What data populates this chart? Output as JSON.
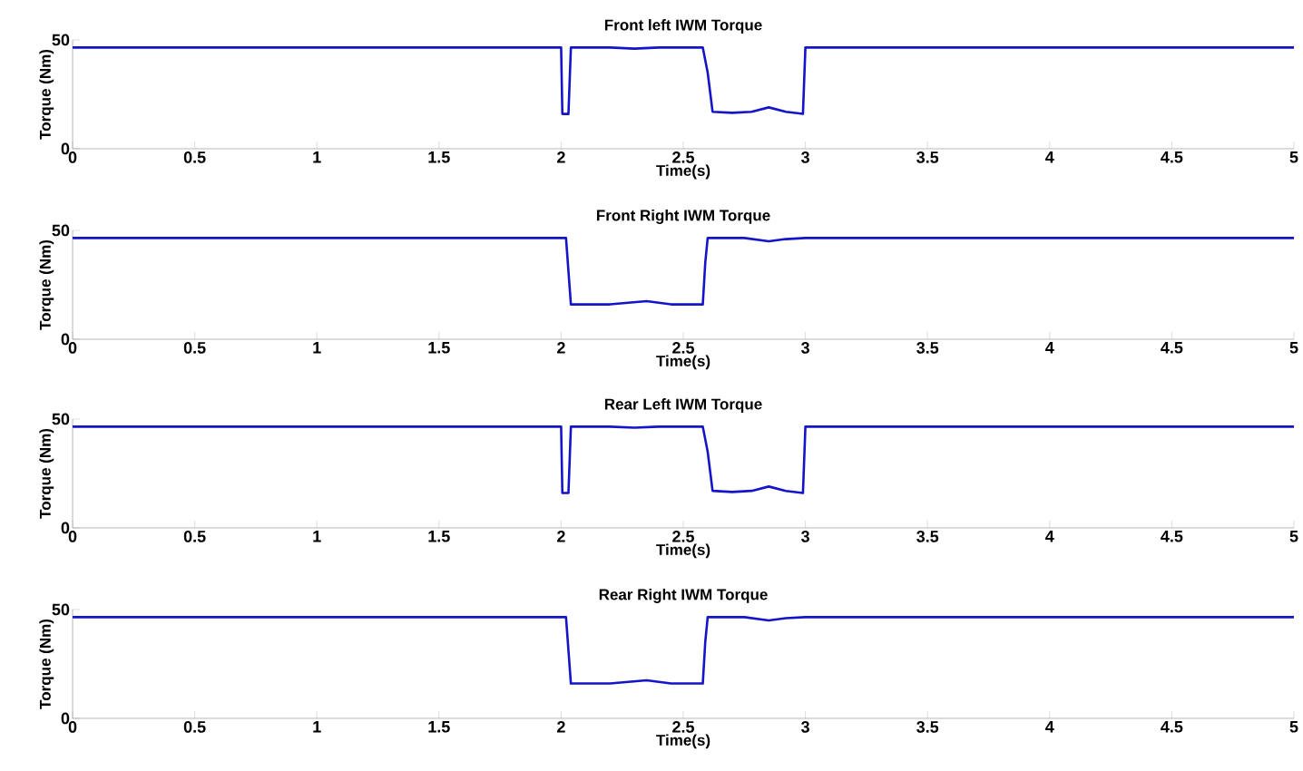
{
  "chart_data": [
    {
      "type": "line",
      "title": "Front left IWM Torque",
      "xlabel": "Time(s)",
      "ylabel": "Torque (Nm)",
      "series": [
        {
          "color": "#1414c8",
          "x": [
            0,
            1.0,
            2.0,
            2.005,
            2.03,
            2.04,
            2.2,
            2.3,
            2.4,
            2.58,
            2.6,
            2.62,
            2.7,
            2.78,
            2.85,
            2.92,
            2.99,
            3.0,
            4.0,
            5.0
          ],
          "values": [
            46.5,
            46.5,
            46.5,
            16,
            16,
            46.5,
            46.5,
            46,
            46.5,
            46.5,
            35,
            17,
            16.5,
            17,
            19,
            17,
            16,
            46.5,
            46.5,
            46.5
          ]
        }
      ],
      "xlim": [
        0,
        5
      ],
      "ylim": [
        0,
        50
      ],
      "xticks": [
        0,
        0.5,
        1,
        1.5,
        2,
        2.5,
        3,
        3.5,
        4,
        4.5,
        5
      ],
      "yticks": [
        0,
        50
      ]
    },
    {
      "type": "line",
      "title": "Front Right IWM Torque",
      "xlabel": "Time(s)",
      "ylabel": "Torque (Nm)",
      "series": [
        {
          "color": "#1414c8",
          "x": [
            0,
            1.0,
            2.0,
            2.02,
            2.04,
            2.2,
            2.35,
            2.45,
            2.58,
            2.59,
            2.6,
            2.75,
            2.85,
            2.92,
            3.0,
            4.0,
            5.0
          ],
          "values": [
            46.5,
            46.5,
            46.5,
            46.5,
            16,
            16,
            17.5,
            16,
            16,
            35,
            46.5,
            46.5,
            45,
            46,
            46.5,
            46.5,
            46.5
          ]
        }
      ],
      "xlim": [
        0,
        5
      ],
      "ylim": [
        0,
        50
      ],
      "xticks": [
        0,
        0.5,
        1,
        1.5,
        2,
        2.5,
        3,
        3.5,
        4,
        4.5,
        5
      ],
      "yticks": [
        0,
        50
      ]
    },
    {
      "type": "line",
      "title": "Rear Left IWM Torque",
      "xlabel": "Time(s)",
      "ylabel": "Torque (Nm)",
      "series": [
        {
          "color": "#1414c8",
          "x": [
            0,
            1.0,
            2.0,
            2.005,
            2.03,
            2.04,
            2.2,
            2.3,
            2.4,
            2.58,
            2.6,
            2.62,
            2.7,
            2.78,
            2.85,
            2.92,
            2.99,
            3.0,
            4.0,
            5.0
          ],
          "values": [
            46.5,
            46.5,
            46.5,
            16,
            16,
            46.5,
            46.5,
            46,
            46.5,
            46.5,
            35,
            17,
            16.5,
            17,
            19,
            17,
            16,
            46.5,
            46.5,
            46.5
          ]
        }
      ],
      "xlim": [
        0,
        5
      ],
      "ylim": [
        0,
        50
      ],
      "xticks": [
        0,
        0.5,
        1,
        1.5,
        2,
        2.5,
        3,
        3.5,
        4,
        4.5,
        5
      ],
      "yticks": [
        0,
        50
      ]
    },
    {
      "type": "line",
      "title": "Rear Right IWM Torque",
      "xlabel": "Time(s)",
      "ylabel": "Torque (Nm)",
      "series": [
        {
          "color": "#1414c8",
          "x": [
            0,
            1.0,
            2.0,
            2.02,
            2.04,
            2.2,
            2.35,
            2.45,
            2.58,
            2.59,
            2.6,
            2.75,
            2.85,
            2.92,
            3.0,
            4.0,
            5.0
          ],
          "values": [
            46.5,
            46.5,
            46.5,
            46.5,
            16,
            16,
            17.5,
            16,
            16,
            35,
            46.5,
            46.5,
            45,
            46,
            46.5,
            46.5,
            46.5
          ]
        }
      ],
      "xlim": [
        0,
        5
      ],
      "ylim": [
        0,
        50
      ],
      "xticks": [
        0,
        0.5,
        1,
        1.5,
        2,
        2.5,
        3,
        3.5,
        4,
        4.5,
        5
      ],
      "yticks": [
        0,
        50
      ]
    }
  ]
}
